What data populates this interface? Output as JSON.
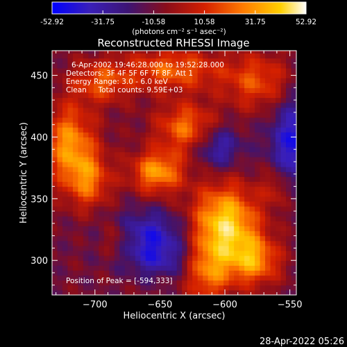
{
  "colorbar": {
    "ticks": [
      "-52.92",
      "-31.75",
      "-10.58",
      "10.58",
      "31.75",
      "52.92"
    ],
    "range": [
      -52.92,
      52.92
    ],
    "unit_label": "(photons cm⁻² s⁻¹ asec⁻²)",
    "colors": [
      "#0000ff",
      "#3a1fb8",
      "#3d1473",
      "#8a0d1a",
      "#d42000",
      "#ff7a00",
      "#ffd000",
      "#ffffff"
    ]
  },
  "chart_data": {
    "type": "heatmap",
    "title": "Reconstructed RHESSI Image",
    "xlabel": "Heliocentric X (arcsec)",
    "ylabel": "Heliocentric Y (arcsec)",
    "xlim": [
      -733,
      -545
    ],
    "ylim": [
      272,
      470
    ],
    "x_ticks": [
      -700,
      -650,
      -600,
      -550
    ],
    "y_ticks": [
      300,
      350,
      400,
      450
    ],
    "x_tick_labels": [
      "−700",
      "−650",
      "−600",
      "−550"
    ],
    "y_tick_labels": [
      "300",
      "350",
      "400",
      "450"
    ],
    "grid": false,
    "legend": "colorbar-top",
    "pixel_size_arcsec": 4,
    "peak": [
      -594,
      333
    ],
    "hot_regions": [
      {
        "x": -600,
        "y": 330,
        "amp": 52,
        "sx": 18,
        "sy": 22
      },
      {
        "x": -720,
        "y": 395,
        "amp": 38,
        "sx": 14,
        "sy": 22
      },
      {
        "x": -705,
        "y": 365,
        "amp": 30,
        "sx": 12,
        "sy": 16
      },
      {
        "x": -652,
        "y": 372,
        "amp": 40,
        "sx": 14,
        "sy": 12
      },
      {
        "x": -630,
        "y": 408,
        "amp": 32,
        "sx": 16,
        "sy": 14
      },
      {
        "x": -640,
        "y": 455,
        "amp": 30,
        "sx": 26,
        "sy": 12
      },
      {
        "x": -695,
        "y": 445,
        "amp": 26,
        "sx": 16,
        "sy": 12
      },
      {
        "x": -575,
        "y": 445,
        "amp": 26,
        "sx": 18,
        "sy": 16
      },
      {
        "x": -578,
        "y": 300,
        "amp": 36,
        "sx": 14,
        "sy": 14
      },
      {
        "x": -613,
        "y": 290,
        "amp": 30,
        "sx": 12,
        "sy": 18
      },
      {
        "x": -683,
        "y": 318,
        "amp": 20,
        "sx": 10,
        "sy": 10
      },
      {
        "x": -560,
        "y": 360,
        "amp": 18,
        "sx": 8,
        "sy": 12
      }
    ],
    "cold_regions": [
      {
        "x": -545,
        "y": 395,
        "amp": -35,
        "sx": 14,
        "sy": 26
      },
      {
        "x": -660,
        "y": 320,
        "amp": -30,
        "sx": 22,
        "sy": 14
      },
      {
        "x": -605,
        "y": 392,
        "amp": -26,
        "sx": 12,
        "sy": 12
      },
      {
        "x": -650,
        "y": 300,
        "amp": -18,
        "sx": 16,
        "sy": 10
      }
    ]
  },
  "annotations": {
    "line1": "6-Apr-2002 19:46:28.000 to 19:52:28.000",
    "line2": "Detectors: 3F 4F 5F 6F 7F 8F, Att 1",
    "line3": "Energy Range: 3.0 - 6.0 keV",
    "line4": "Clean     Total counts: 9.59E+03",
    "peak_text": "Position of Peak = [-594,333]"
  },
  "footer": {
    "timestamp": "28-Apr-2022 05:26"
  }
}
